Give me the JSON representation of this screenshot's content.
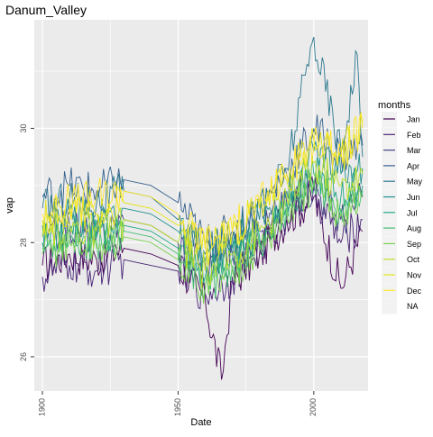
{
  "chart_data": {
    "type": "line",
    "title": "Danum_Valley",
    "xlabel": "Date",
    "ylabel": "vap",
    "xlim": [
      1897,
      2020
    ],
    "ylim": [
      25.4,
      31.9
    ],
    "x_ticks": [
      1900,
      1950,
      2000
    ],
    "x_tick_labels": [
      "1900",
      "1950",
      "2000"
    ],
    "y_ticks": [
      26,
      28,
      30
    ],
    "y_tick_labels": [
      "26",
      "28",
      "30"
    ],
    "grid": true,
    "legend": {
      "title": "months",
      "placement": "right",
      "entries": [
        "Jan",
        "Feb",
        "Mar",
        "Apr",
        "May",
        "Jun",
        "Jul",
        "Aug",
        "Sep",
        "Oct",
        "Nov",
        "Dec",
        "NA"
      ]
    },
    "palette": [
      "#440154",
      "#482576",
      "#414487",
      "#35608D",
      "#2A788E",
      "#21908C",
      "#22A884",
      "#43BF71",
      "#7AD151",
      "#BBDF27",
      "#E4E419",
      "#FDE725",
      "#E8E8E8"
    ],
    "series": [
      {
        "name": "Jan",
        "x": [
          1900,
          1910,
          1920,
          1930,
          1940,
          1950,
          1960,
          1966,
          1970,
          1980,
          1990,
          2000,
          2010,
          2018
        ],
        "values": [
          27.6,
          27.8,
          27.7,
          27.9,
          27.8,
          27.6,
          27.0,
          25.6,
          27.3,
          27.8,
          28.4,
          28.8,
          27.2,
          28.2
        ]
      },
      {
        "name": "Feb",
        "x": [
          1900,
          1910,
          1920,
          1930,
          1940,
          1950,
          1960,
          1970,
          1980,
          1990,
          2000,
          2010,
          2018
        ],
        "values": [
          27.4,
          27.6,
          27.5,
          27.7,
          27.6,
          27.5,
          27.1,
          27.4,
          27.9,
          28.5,
          28.9,
          28.0,
          28.4
        ]
      },
      {
        "name": "Mar",
        "x": [
          1900,
          1910,
          1920,
          1930,
          1940,
          1950,
          1960,
          1970,
          1980,
          1990,
          2000,
          2010,
          2018
        ],
        "values": [
          28.0,
          28.3,
          28.1,
          28.4,
          28.3,
          28.0,
          27.6,
          27.8,
          28.2,
          28.7,
          29.0,
          28.4,
          28.8
        ]
      },
      {
        "name": "Apr",
        "x": [
          1900,
          1910,
          1920,
          1930,
          1940,
          1950,
          1960,
          1970,
          1980,
          1990,
          2000,
          2010,
          2018
        ],
        "values": [
          28.8,
          29.0,
          28.9,
          29.1,
          29.0,
          28.7,
          28.0,
          28.2,
          28.6,
          29.2,
          30.0,
          29.5,
          29.7
        ]
      },
      {
        "name": "May",
        "x": [
          1900,
          1910,
          1920,
          1930,
          1940,
          1950,
          1960,
          1970,
          1980,
          1990,
          2000,
          2010,
          2016,
          2018
        ],
        "values": [
          28.6,
          28.8,
          28.7,
          28.9,
          28.8,
          28.4,
          27.8,
          28.1,
          28.6,
          29.3,
          31.6,
          29.6,
          31.3,
          29.5
        ]
      },
      {
        "name": "Jun",
        "x": [
          1900,
          1910,
          1920,
          1930,
          1940,
          1950,
          1960,
          1970,
          1980,
          1990,
          2000,
          2010,
          2018
        ],
        "values": [
          28.3,
          28.5,
          28.4,
          28.6,
          28.5,
          28.2,
          27.7,
          27.9,
          28.4,
          28.9,
          29.6,
          29.2,
          29.3
        ]
      },
      {
        "name": "Jul",
        "x": [
          1900,
          1910,
          1920,
          1930,
          1940,
          1950,
          1960,
          1970,
          1980,
          1990,
          2000,
          2010,
          2018
        ],
        "values": [
          28.0,
          28.2,
          28.1,
          28.3,
          28.2,
          27.9,
          27.4,
          27.7,
          28.1,
          28.7,
          29.2,
          28.8,
          29.0
        ]
      },
      {
        "name": "Aug",
        "x": [
          1900,
          1910,
          1920,
          1930,
          1940,
          1950,
          1960,
          1970,
          1980,
          1990,
          2000,
          2010,
          2018
        ],
        "values": [
          27.9,
          28.1,
          28.0,
          28.2,
          28.1,
          27.8,
          27.2,
          27.6,
          28.0,
          28.6,
          29.1,
          28.6,
          28.9
        ]
      },
      {
        "name": "Sep",
        "x": [
          1900,
          1910,
          1920,
          1930,
          1940,
          1950,
          1960,
          1970,
          1980,
          1990,
          2000,
          2010,
          2018
        ],
        "values": [
          27.8,
          28.0,
          27.9,
          28.1,
          28.0,
          27.7,
          27.2,
          27.5,
          27.9,
          28.5,
          29.0,
          28.5,
          28.8
        ]
      },
      {
        "name": "Oct",
        "x": [
          1900,
          1910,
          1920,
          1930,
          1940,
          1950,
          1960,
          1970,
          1980,
          1990,
          2000,
          2010,
          2018
        ],
        "values": [
          28.1,
          28.3,
          28.2,
          28.4,
          28.3,
          28.0,
          27.5,
          27.8,
          28.2,
          28.8,
          29.4,
          29.0,
          29.2
        ]
      },
      {
        "name": "Nov",
        "x": [
          1900,
          1910,
          1920,
          1930,
          1940,
          1950,
          1960,
          1970,
          1980,
          1990,
          2000,
          2010,
          2018
        ],
        "values": [
          28.4,
          28.6,
          28.5,
          28.7,
          28.6,
          28.3,
          27.9,
          28.2,
          28.6,
          29.1,
          29.8,
          29.5,
          30.1
        ]
      },
      {
        "name": "Dec",
        "x": [
          1900,
          1910,
          1920,
          1930,
          1940,
          1950,
          1960,
          1970,
          1980,
          1990,
          2000,
          2010,
          2018
        ],
        "values": [
          28.5,
          28.7,
          28.8,
          28.9,
          28.8,
          28.5,
          28.0,
          28.2,
          28.7,
          29.2,
          29.7,
          29.6,
          30.0
        ]
      }
    ]
  }
}
